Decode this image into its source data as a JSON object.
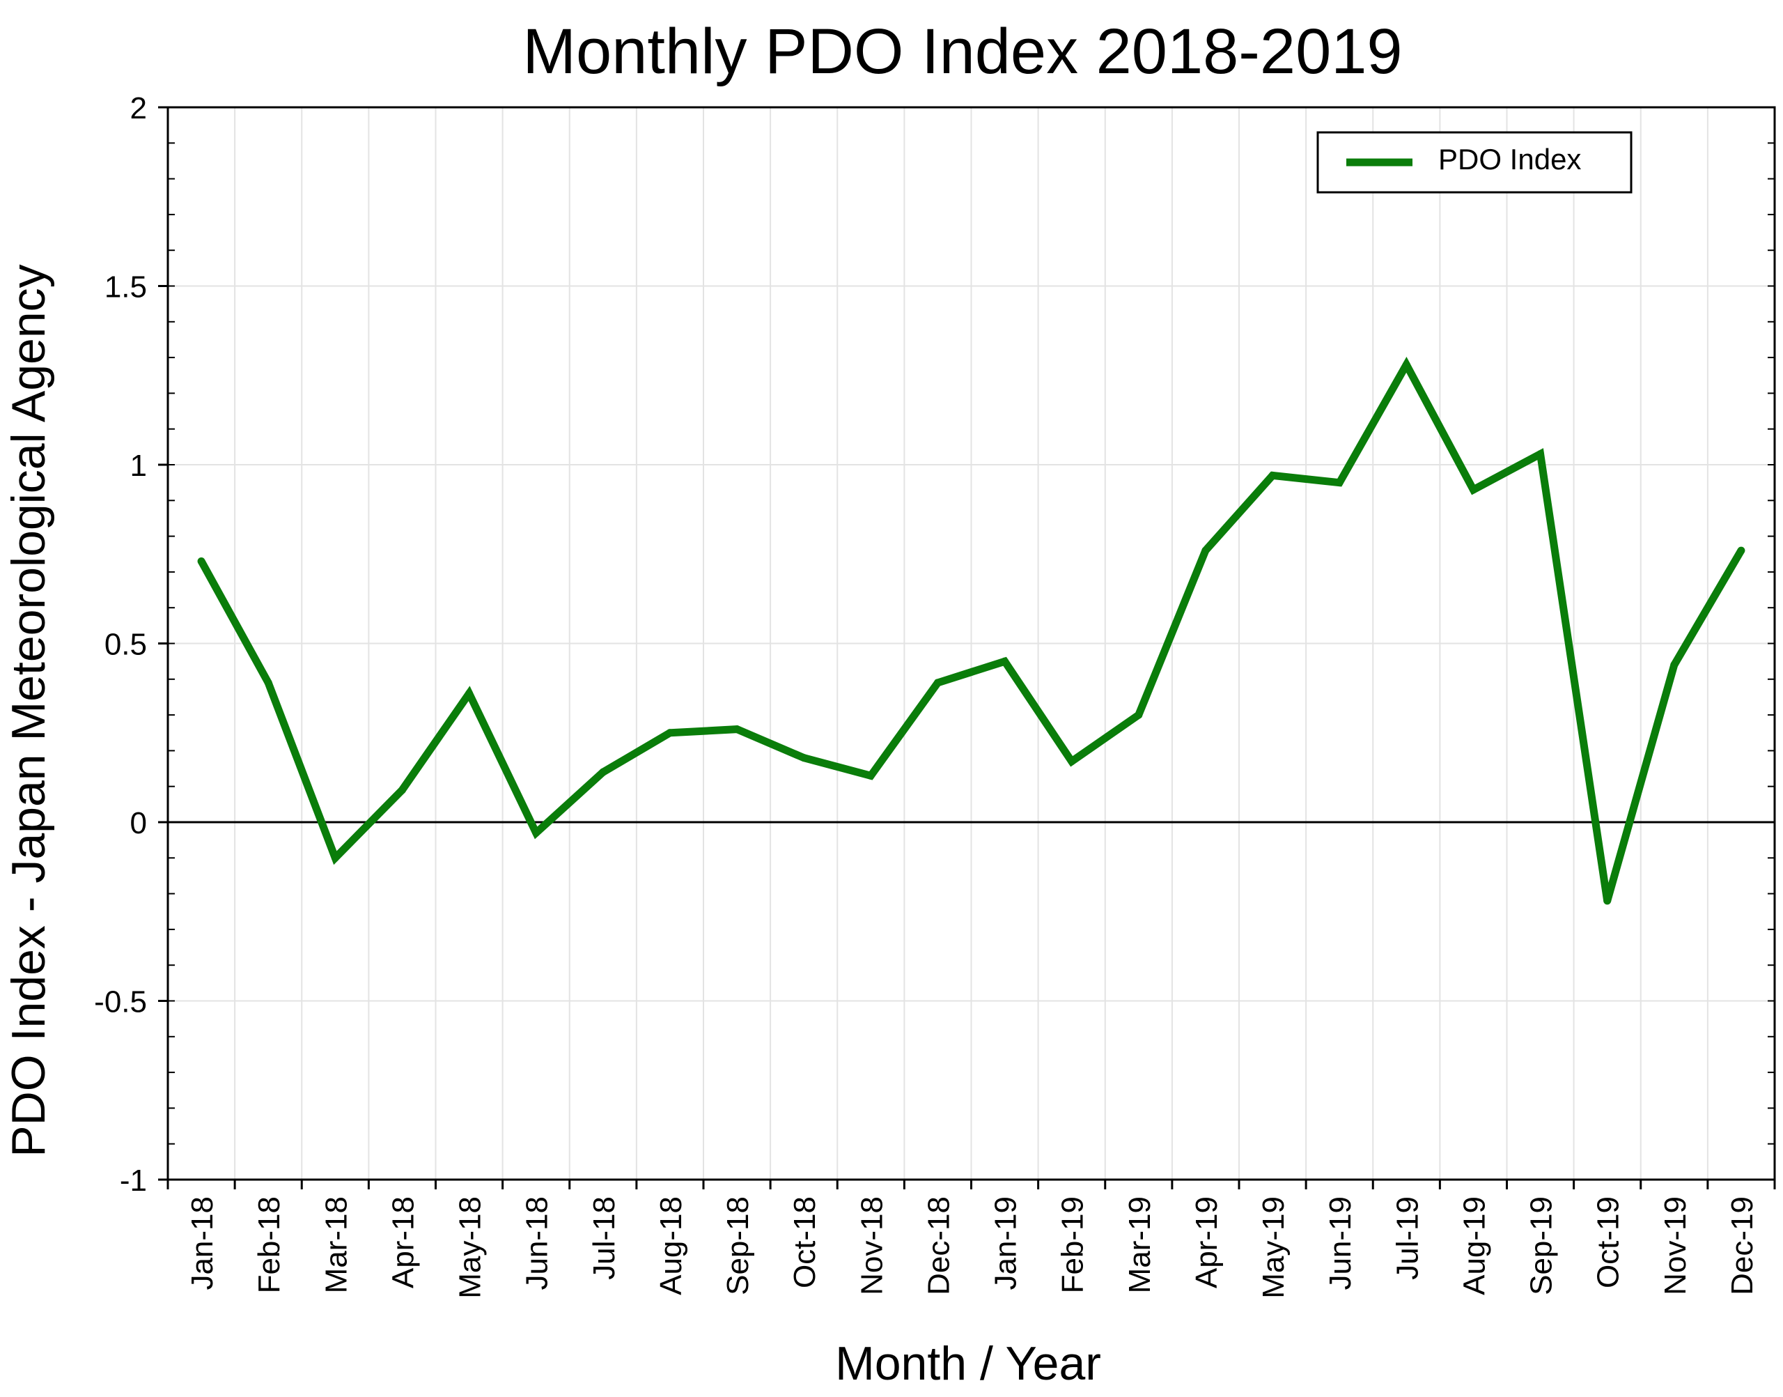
{
  "chart_data": {
    "type": "line",
    "title": "Monthly PDO Index 2018-2019",
    "xlabel": "Month / Year",
    "ylabel": "PDO Index - Japan Meteorological Agency",
    "categories": [
      "Jan-18",
      "Feb-18",
      "Mar-18",
      "Apr-18",
      "May-18",
      "Jun-18",
      "Jul-18",
      "Aug-18",
      "Sep-18",
      "Oct-18",
      "Nov-18",
      "Dec-18",
      "Jan-19",
      "Feb-19",
      "Mar-19",
      "Apr-19",
      "May-19",
      "Jun-19",
      "Jul-19",
      "Aug-19",
      "Sep-19",
      "Oct-19",
      "Nov-19",
      "Dec-19"
    ],
    "series": [
      {
        "name": "PDO Index",
        "color": "#0a7d0a",
        "values": [
          0.73,
          0.39,
          -0.1,
          0.09,
          0.36,
          -0.03,
          0.14,
          0.25,
          0.26,
          0.18,
          0.13,
          0.39,
          0.45,
          0.17,
          0.3,
          0.76,
          0.97,
          0.95,
          1.28,
          0.93,
          1.03,
          -0.22,
          0.44,
          0.76
        ]
      }
    ],
    "ylim": [
      -1,
      2
    ],
    "yticks": [
      -1,
      -0.5,
      0,
      0.5,
      1,
      1.5,
      2
    ],
    "ytick_labels": [
      "-1",
      "-0.5",
      "0",
      "0.5",
      "1",
      "1.5",
      "2"
    ],
    "grid": true,
    "zero_line": true,
    "legend": "top-right"
  }
}
